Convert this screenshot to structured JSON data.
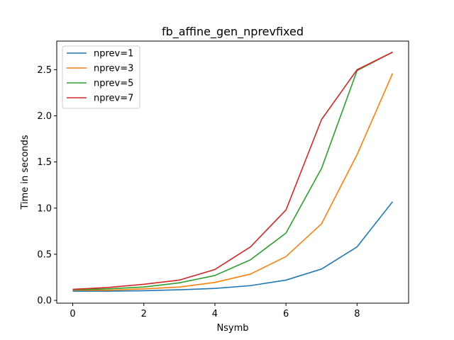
{
  "chart_data": {
    "type": "line",
    "title": "fb_affine_gen_nprevfixed",
    "xlabel": "Nsymb",
    "ylabel": "Time in seconds",
    "x": [
      0,
      1,
      2,
      3,
      4,
      5,
      6,
      7,
      8,
      9
    ],
    "xlim": [
      -0.45,
      9.45
    ],
    "ylim": [
      -0.03,
      2.81
    ],
    "xticks": [
      0,
      2,
      4,
      6,
      8
    ],
    "yticks": [
      0.0,
      0.5,
      1.0,
      1.5,
      2.0,
      2.5
    ],
    "ytick_labels": [
      "0.0",
      "0.5",
      "1.0",
      "1.5",
      "2.0",
      "2.5"
    ],
    "grid": false,
    "legend_position": "top-left",
    "series": [
      {
        "name": "nprev=1",
        "color": "#1f77b4",
        "values": [
          0.1,
          0.1,
          0.105,
          0.115,
          0.13,
          0.16,
          0.22,
          0.34,
          0.58,
          1.07
        ]
      },
      {
        "name": "nprev=3",
        "color": "#ff7f0e",
        "values": [
          0.11,
          0.11,
          0.125,
          0.145,
          0.195,
          0.285,
          0.475,
          0.83,
          1.58,
          2.46
        ]
      },
      {
        "name": "nprev=5",
        "color": "#2ca02c",
        "values": [
          0.115,
          0.125,
          0.145,
          0.19,
          0.27,
          0.44,
          0.73,
          1.43,
          2.49,
          2.69
        ]
      },
      {
        "name": "nprev=7",
        "color": "#d62728",
        "values": [
          0.12,
          0.14,
          0.175,
          0.22,
          0.335,
          0.58,
          0.98,
          1.96,
          2.5,
          2.69
        ]
      }
    ]
  }
}
